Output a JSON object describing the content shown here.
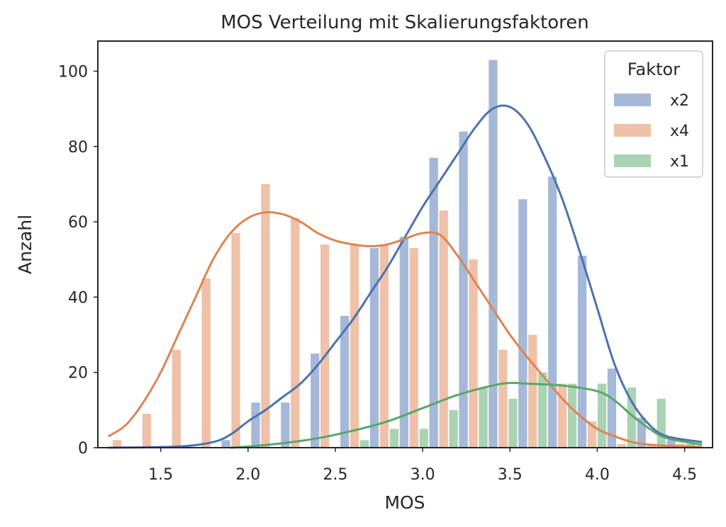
{
  "chart_data": {
    "type": "bar",
    "title": "MOS Verteilung mit Skalierungsfaktoren",
    "xlabel": "MOS",
    "ylabel": "Anzahl",
    "xlim": [
      1.14,
      4.66
    ],
    "ylim": [
      0,
      108
    ],
    "xticks": [
      1.5,
      2.0,
      2.5,
      3.0,
      3.5,
      4.0,
      4.5
    ],
    "xtick_labels": [
      "1.5",
      "2.0",
      "2.5",
      "3.0",
      "3.5",
      "4.0",
      "4.5"
    ],
    "yticks": [
      0,
      20,
      40,
      60,
      80,
      100
    ],
    "ytick_labels": [
      "0",
      "20",
      "40",
      "60",
      "80",
      "100"
    ],
    "grid": false,
    "legend": {
      "title": "Faktor",
      "placement": "top-right"
    },
    "bin_centers": [
      1.25,
      1.42,
      1.59,
      1.76,
      1.93,
      2.1,
      2.27,
      2.44,
      2.61,
      2.78,
      2.95,
      3.12,
      3.29,
      3.46,
      3.63,
      3.8,
      3.97,
      4.14,
      4.31,
      4.48
    ],
    "series": [
      {
        "name": "x2",
        "color": "#4c72b0",
        "values": [
          0,
          0,
          0,
          0,
          2,
          12,
          12,
          25,
          35,
          53,
          56,
          77,
          84,
          103,
          66,
          72,
          51,
          21,
          8,
          2
        ],
        "kde_x": [
          1.2,
          1.6,
          1.8,
          1.9,
          2.0,
          2.1,
          2.2,
          2.3,
          2.4,
          2.5,
          2.6,
          2.7,
          2.8,
          2.9,
          3.0,
          3.1,
          3.2,
          3.3,
          3.4,
          3.5,
          3.6,
          3.7,
          3.8,
          3.9,
          4.0,
          4.1,
          4.2,
          4.3,
          4.4,
          4.6
        ],
        "kde_y": [
          0,
          0.3,
          1.5,
          3.5,
          7,
          10,
          13.5,
          17,
          22,
          28,
          34,
          41,
          48,
          56,
          64,
          71,
          78,
          85,
          90,
          90.5,
          86,
          77,
          66,
          52,
          37,
          22,
          12,
          6,
          3,
          1.5
        ]
      },
      {
        "name": "x4",
        "color": "#dd8452",
        "values": [
          2,
          9,
          26,
          45,
          57,
          70,
          61,
          54,
          54,
          54,
          53,
          63,
          50,
          26,
          30,
          17,
          7,
          1,
          1,
          1
        ],
        "kde_x": [
          1.2,
          1.3,
          1.4,
          1.5,
          1.6,
          1.7,
          1.8,
          1.9,
          2.0,
          2.1,
          2.2,
          2.3,
          2.4,
          2.5,
          2.6,
          2.7,
          2.8,
          2.9,
          3.0,
          3.1,
          3.2,
          3.3,
          3.4,
          3.5,
          3.6,
          3.7,
          3.8,
          3.9,
          4.0,
          4.1,
          4.2,
          4.3,
          4.4,
          4.6
        ],
        "kde_y": [
          3,
          6,
          12,
          20,
          30,
          40,
          50,
          57,
          61,
          62.5,
          62,
          60,
          57,
          55,
          54,
          53.5,
          54,
          55.5,
          57,
          56.5,
          51,
          44,
          37,
          30,
          24,
          18.5,
          13,
          8.5,
          5,
          3,
          1.5,
          0.8,
          0.5,
          0.2
        ]
      },
      {
        "name": "x1",
        "color": "#55a868",
        "values": [
          0,
          0,
          0,
          0,
          0,
          0,
          0,
          0,
          2,
          5,
          5,
          10,
          16,
          13,
          20,
          17,
          17,
          16,
          13,
          1
        ],
        "kde_x": [
          1.9,
          2.0,
          2.2,
          2.4,
          2.6,
          2.8,
          3.0,
          3.2,
          3.4,
          3.5,
          3.6,
          3.8,
          4.0,
          4.1,
          4.2,
          4.3,
          4.4,
          4.6
        ],
        "kde_y": [
          0,
          0.3,
          1.2,
          2.5,
          4.5,
          7,
          10.5,
          14,
          16.5,
          17.2,
          17,
          16.5,
          15,
          12.5,
          8.5,
          5,
          2.5,
          0.8
        ]
      }
    ]
  }
}
